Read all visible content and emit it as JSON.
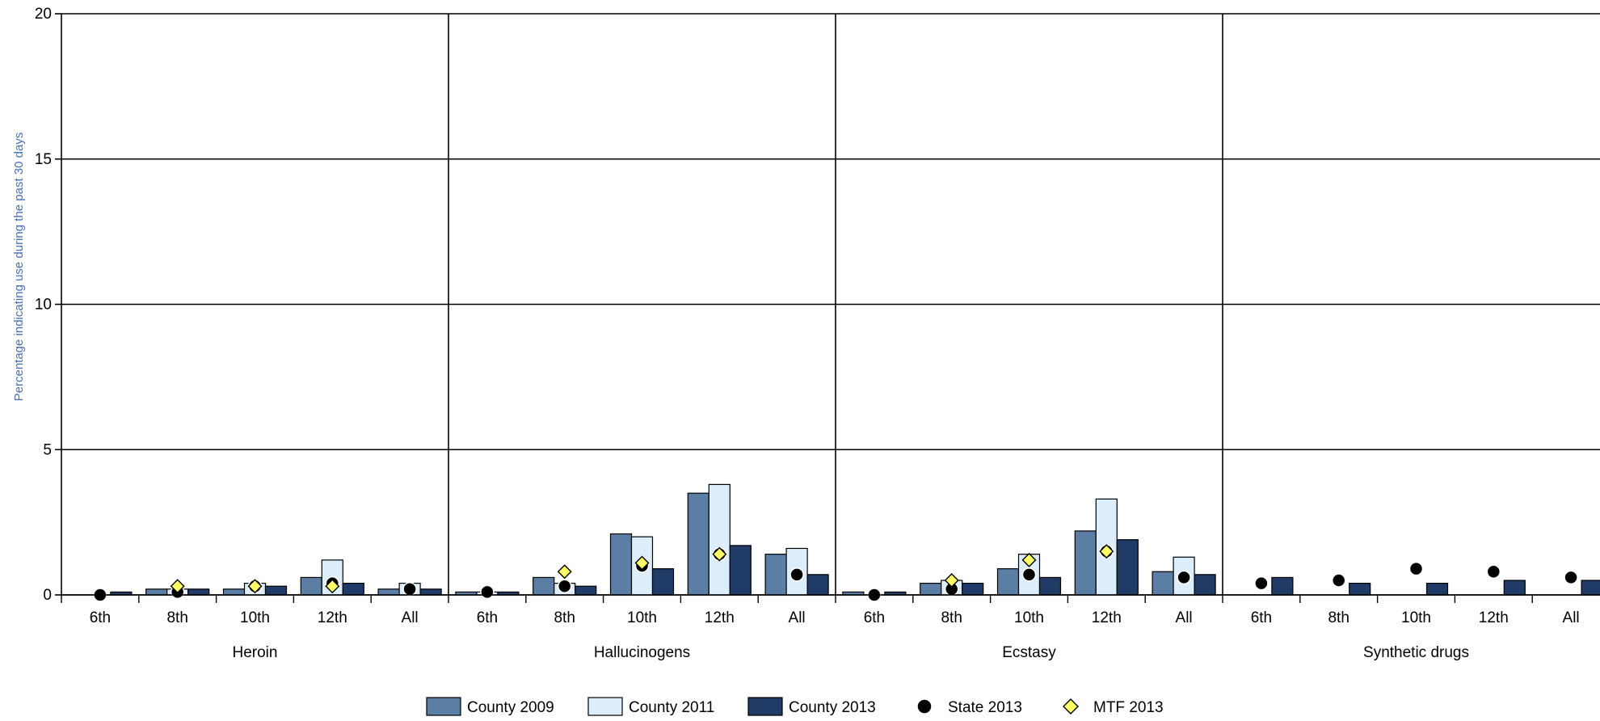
{
  "chart_data": {
    "type": "bar",
    "ylabel": "Percentage indicating use during the past 30 days",
    "ylim": [
      0,
      20
    ],
    "yticks": [
      0,
      5,
      10,
      15,
      20
    ],
    "grid": true,
    "legend_position": "bottom",
    "grades": [
      "6th",
      "8th",
      "10th",
      "12th",
      "All"
    ],
    "groups": [
      "Heroin",
      "Hallucinogens",
      "Ecstasy",
      "Synthetic drugs"
    ],
    "bar_series": [
      {
        "name": "County 2009",
        "color": "#5b7ea5",
        "values": [
          [
            null,
            0.2,
            0.2,
            0.6,
            0.2
          ],
          [
            0.1,
            0.6,
            2.1,
            3.5,
            1.4
          ],
          [
            0.1,
            0.4,
            0.9,
            2.2,
            0.8
          ],
          [
            null,
            null,
            null,
            null,
            null
          ]
        ]
      },
      {
        "name": "County 2011",
        "color": "#dcedfb",
        "values": [
          [
            null,
            0.2,
            0.4,
            1.2,
            0.4
          ],
          [
            0.1,
            0.4,
            2.0,
            3.8,
            1.6
          ],
          [
            null,
            0.5,
            1.4,
            3.3,
            1.3
          ],
          [
            null,
            null,
            null,
            null,
            null
          ]
        ]
      },
      {
        "name": "County 2013",
        "color": "#1f3b66",
        "values": [
          [
            0.1,
            0.2,
            0.3,
            0.4,
            0.2
          ],
          [
            0.1,
            0.3,
            0.9,
            1.7,
            0.7
          ],
          [
            0.1,
            0.4,
            0.6,
            1.9,
            0.7
          ],
          [
            0.6,
            0.4,
            0.4,
            0.5,
            0.5
          ]
        ]
      }
    ],
    "point_series": [
      {
        "name": "State 2013",
        "marker": "circle",
        "color": "#000000",
        "values": [
          [
            0.0,
            0.1,
            0.3,
            0.4,
            0.2
          ],
          [
            0.1,
            0.3,
            1.0,
            1.4,
            0.7
          ],
          [
            0.0,
            0.2,
            0.7,
            1.5,
            0.6
          ],
          [
            0.4,
            0.5,
            0.9,
            0.8,
            0.6
          ]
        ]
      },
      {
        "name": "MTF 2013",
        "marker": "diamond",
        "color": "#ffff66",
        "values": [
          [
            null,
            0.3,
            0.3,
            0.3,
            null
          ],
          [
            null,
            0.8,
            1.1,
            1.4,
            null
          ],
          [
            null,
            0.5,
            1.2,
            1.5,
            null
          ],
          [
            null,
            null,
            null,
            null,
            null
          ]
        ]
      }
    ]
  }
}
